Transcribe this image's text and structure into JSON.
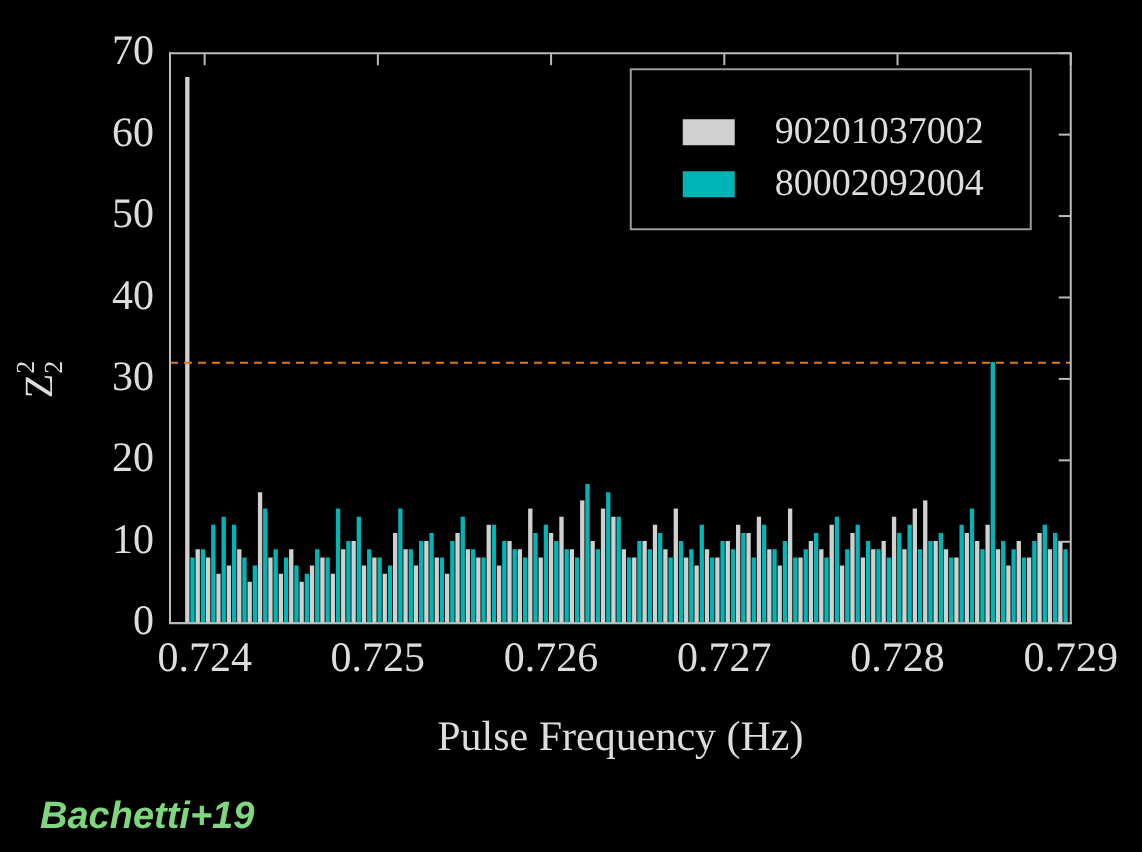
{
  "chart_data": {
    "type": "bar",
    "xlabel": "Pulse Frequency (Hz)",
    "ylabel": "Z$^{2}$$_{2}$",
    "annotations": [
      "Bachetti+19"
    ],
    "xlim": [
      0.7238,
      0.729
    ],
    "xticks": [
      0.724,
      0.725,
      0.726,
      0.727,
      0.728,
      0.729
    ],
    "ylim": [
      0,
      70
    ],
    "yticks": [
      0,
      10,
      20,
      30,
      40,
      50,
      60,
      70
    ],
    "grid": false,
    "legend": "top right",
    "ref_lines": [
      {
        "axis": "y",
        "value": 32,
        "color": "#e07a1f",
        "line_style": "dashed"
      }
    ],
    "series": [
      {
        "name": "90201037002",
        "color": "#d0d0d0",
        "x": [
          0.7239,
          0.72396,
          0.72402,
          0.72408,
          0.72414,
          0.7242,
          0.72426,
          0.72432,
          0.72438,
          0.72444,
          0.7245,
          0.72456,
          0.72462,
          0.72468,
          0.72474,
          0.7248,
          0.72486,
          0.72492,
          0.72498,
          0.72504,
          0.7251,
          0.72516,
          0.72522,
          0.72528,
          0.72534,
          0.7254,
          0.72546,
          0.72552,
          0.72558,
          0.72564,
          0.7257,
          0.72576,
          0.72582,
          0.72588,
          0.72594,
          0.726,
          0.72606,
          0.72612,
          0.72618,
          0.72624,
          0.7263,
          0.72636,
          0.72642,
          0.72648,
          0.72654,
          0.7266,
          0.72666,
          0.72672,
          0.72678,
          0.72684,
          0.7269,
          0.72696,
          0.72702,
          0.72708,
          0.72714,
          0.7272,
          0.72726,
          0.72732,
          0.72738,
          0.72744,
          0.7275,
          0.72756,
          0.72762,
          0.72768,
          0.72774,
          0.7278,
          0.72786,
          0.72792,
          0.72798,
          0.72804,
          0.7281,
          0.72816,
          0.72822,
          0.72828,
          0.72834,
          0.7284,
          0.72846,
          0.72852,
          0.72858,
          0.72864,
          0.7287,
          0.72876,
          0.72882,
          0.72888,
          0.72894
        ],
        "values": [
          67,
          9,
          8,
          6,
          7,
          9,
          5,
          16,
          8,
          6,
          9,
          5,
          7,
          8,
          6,
          9,
          10,
          7,
          8,
          6,
          11,
          9,
          7,
          10,
          8,
          6,
          11,
          9,
          8,
          12,
          7,
          10,
          9,
          14,
          8,
          11,
          13,
          9,
          15,
          10,
          14,
          13,
          9,
          8,
          10,
          12,
          9,
          14,
          8,
          7,
          9,
          8,
          10,
          12,
          11,
          13,
          9,
          7,
          14,
          8,
          10,
          9,
          12,
          7,
          11,
          8,
          9,
          10,
          13,
          9,
          14,
          15,
          10,
          9,
          8,
          11,
          10,
          12,
          9,
          7,
          10,
          8,
          11,
          9,
          10
        ]
      },
      {
        "name": "80002092004",
        "color": "#00b5b5",
        "x": [
          0.72393,
          0.72399,
          0.72405,
          0.72411,
          0.72417,
          0.72423,
          0.72429,
          0.72435,
          0.72441,
          0.72447,
          0.72453,
          0.72459,
          0.72465,
          0.72471,
          0.72477,
          0.72483,
          0.72489,
          0.72495,
          0.72501,
          0.72507,
          0.72513,
          0.72519,
          0.72525,
          0.72531,
          0.72537,
          0.72543,
          0.72549,
          0.72555,
          0.72561,
          0.72567,
          0.72573,
          0.72579,
          0.72585,
          0.72591,
          0.72597,
          0.72603,
          0.72609,
          0.72615,
          0.72621,
          0.72627,
          0.72633,
          0.72639,
          0.72645,
          0.72651,
          0.72657,
          0.72663,
          0.72669,
          0.72675,
          0.72681,
          0.72687,
          0.72693,
          0.72699,
          0.72705,
          0.72711,
          0.72717,
          0.72723,
          0.72729,
          0.72735,
          0.72741,
          0.72747,
          0.72753,
          0.72759,
          0.72765,
          0.72771,
          0.72777,
          0.72783,
          0.72789,
          0.72795,
          0.72801,
          0.72807,
          0.72813,
          0.72819,
          0.72825,
          0.72831,
          0.72837,
          0.72843,
          0.72849,
          0.72855,
          0.72861,
          0.72867,
          0.72873,
          0.72879,
          0.72885,
          0.72891,
          0.72897
        ],
        "values": [
          8,
          9,
          12,
          13,
          12,
          8,
          7,
          14,
          9,
          8,
          7,
          6,
          9,
          8,
          14,
          10,
          13,
          9,
          8,
          7,
          14,
          9,
          10,
          11,
          8,
          10,
          13,
          9,
          8,
          12,
          10,
          9,
          8,
          11,
          12,
          10,
          9,
          8,
          17,
          9,
          16,
          13,
          8,
          10,
          9,
          11,
          8,
          10,
          9,
          12,
          8,
          10,
          9,
          11,
          8,
          12,
          9,
          10,
          8,
          9,
          11,
          8,
          13,
          9,
          12,
          10,
          9,
          8,
          11,
          12,
          9,
          10,
          11,
          8,
          12,
          14,
          9,
          32,
          10,
          9,
          8,
          10,
          12,
          11,
          9
        ]
      }
    ]
  }
}
